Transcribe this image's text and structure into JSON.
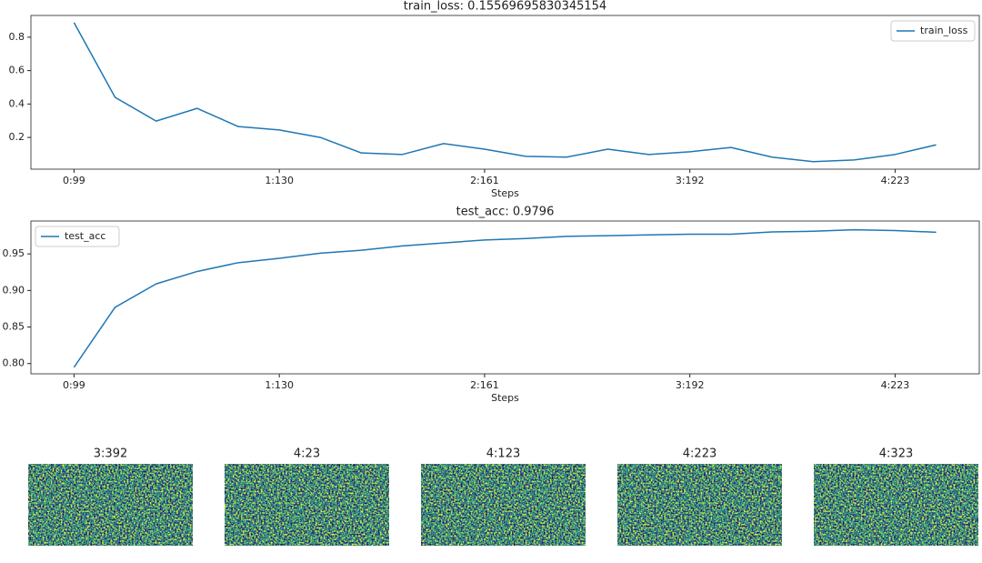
{
  "chart_data": [
    {
      "type": "line",
      "title": "train_loss: 0.15569695830345154",
      "x_label": "Steps",
      "categories": [
        "0:99",
        null,
        null,
        null,
        null,
        "1:130",
        null,
        null,
        null,
        null,
        "2:161",
        null,
        null,
        null,
        null,
        "3:192",
        null,
        null,
        null,
        null,
        "4:223",
        null
      ],
      "series": [
        {
          "name": "train_loss",
          "color": "#1f77b4",
          "values": [
            0.887,
            0.44,
            0.298,
            0.374,
            0.265,
            0.245,
            0.2,
            0.107,
            0.098,
            0.163,
            0.13,
            0.087,
            0.082,
            0.13,
            0.098,
            0.114,
            0.14,
            0.082,
            0.055,
            0.065,
            0.098,
            0.1557
          ]
        }
      ],
      "xlim": [
        -1.05,
        22.05
      ],
      "ylim": [
        0.01,
        0.93
      ],
      "yticks": [
        0.2,
        0.4,
        0.6,
        0.8
      ],
      "legend": "upper right"
    },
    {
      "type": "line",
      "title": "test_acc: 0.9796",
      "x_label": "Steps",
      "categories": [
        "0:99",
        null,
        null,
        null,
        null,
        "1:130",
        null,
        null,
        null,
        null,
        "2:161",
        null,
        null,
        null,
        null,
        "3:192",
        null,
        null,
        null,
        null,
        "4:223",
        null
      ],
      "series": [
        {
          "name": "test_acc",
          "color": "#1f77b4",
          "values": [
            0.795,
            0.877,
            0.909,
            0.926,
            0.938,
            0.944,
            0.951,
            0.955,
            0.961,
            0.965,
            0.969,
            0.971,
            0.974,
            0.975,
            0.976,
            0.977,
            0.977,
            0.98,
            0.981,
            0.983,
            0.982,
            0.9796
          ]
        }
      ],
      "xlim": [
        -1.05,
        22.05
      ],
      "ylim": [
        0.786,
        0.995
      ],
      "yticks": [
        {
          "value": 0.8,
          "label": "0.80"
        },
        0.85,
        {
          "value": 0.9,
          "label": "0.90"
        },
        0.95
      ],
      "legend": "upper left"
    }
  ],
  "images": [
    {
      "title": "3:392"
    },
    {
      "title": "4:23"
    },
    {
      "title": "4:123"
    },
    {
      "title": "4:223"
    },
    {
      "title": "4:323"
    }
  ]
}
